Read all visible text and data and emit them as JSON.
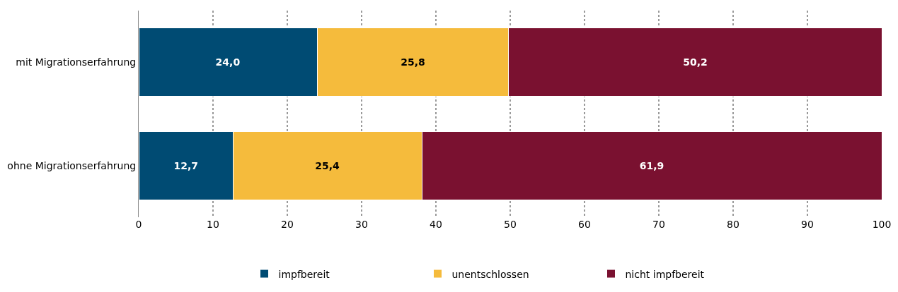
{
  "chart_data": {
    "type": "bar",
    "orientation": "horizontal",
    "stacked": true,
    "categories": [
      "mit Migrationserfahrung",
      "ohne Migrationserfahrung"
    ],
    "series": [
      {
        "name": "impfbereit",
        "color": "#004b73",
        "values": [
          24.0,
          12.7
        ],
        "value_labels": [
          "24,0",
          "12,7"
        ]
      },
      {
        "name": "unentschlossen",
        "color": "#f5bb3c",
        "values": [
          25.8,
          25.4
        ],
        "value_labels": [
          "25,8",
          "25,4"
        ]
      },
      {
        "name": "nicht impfbereit",
        "color": "#7a1130",
        "values": [
          50.2,
          61.9
        ],
        "value_labels": [
          "50,2",
          "61,9"
        ]
      }
    ],
    "xlim": [
      0,
      100
    ],
    "xticks": [
      0,
      10,
      20,
      30,
      40,
      50,
      60,
      70,
      80,
      90,
      100
    ],
    "grid": "x",
    "legend": "bottom"
  }
}
